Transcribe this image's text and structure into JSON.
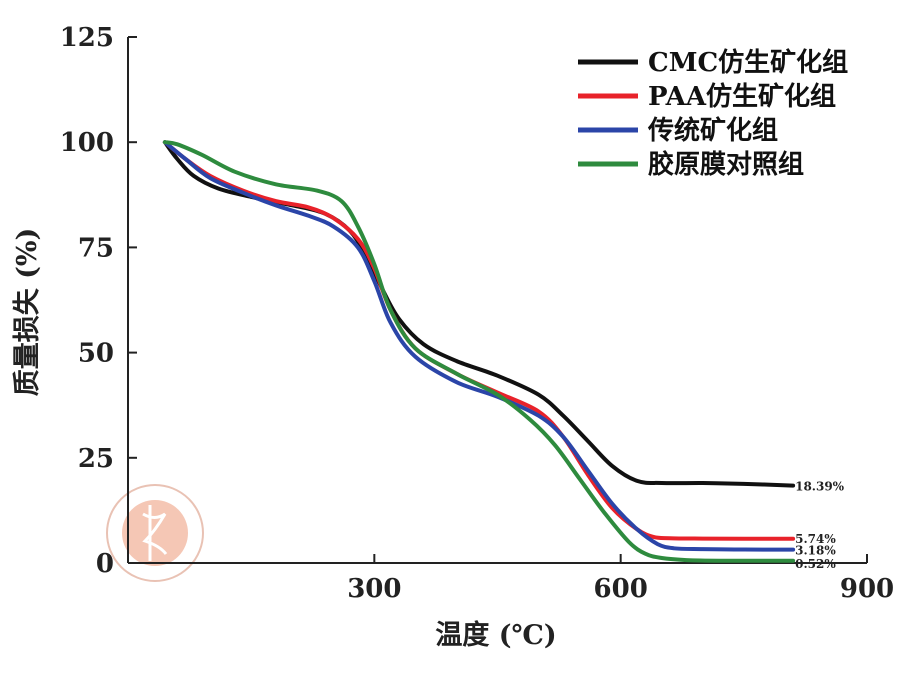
{
  "chart_data": {
    "type": "line",
    "title": "",
    "xlabel": "温度 (℃)",
    "ylabel": "质量损失 (%)",
    "xlim": [
      0,
      900
    ],
    "ylim": [
      0,
      125
    ],
    "xticks": [
      300,
      600,
      900
    ],
    "yticks": [
      0,
      25,
      50,
      75,
      100,
      125
    ],
    "grid": false,
    "legend_position": "top-right",
    "series": [
      {
        "name": "CMC仿生矿化组",
        "color": "#111111",
        "x": [
          45,
          60,
          80,
          110,
          150,
          200,
          240,
          270,
          290,
          310,
          330,
          360,
          400,
          450,
          500,
          530,
          560,
          590,
          620,
          650,
          700,
          750,
          810
        ],
        "y": [
          100,
          96,
          92,
          89,
          87,
          85,
          83,
          79,
          73,
          65,
          58,
          52,
          48,
          44.5,
          40,
          35,
          29,
          23,
          19.5,
          19,
          19,
          18.8,
          18.4
        ],
        "end_label": "18.39%"
      },
      {
        "name": "PAA仿生矿化组",
        "color": "#e8222a",
        "x": [
          45,
          70,
          100,
          140,
          180,
          220,
          250,
          280,
          300,
          320,
          350,
          400,
          450,
          500,
          530,
          560,
          590,
          620,
          640,
          660,
          700,
          750,
          810
        ],
        "y": [
          100,
          96,
          92,
          88.5,
          86,
          84.5,
          82,
          77,
          70,
          60,
          51,
          45,
          40.5,
          36,
          30,
          21,
          13,
          8,
          6.2,
          5.9,
          5.8,
          5.75,
          5.74
        ],
        "end_label": "5.74%"
      },
      {
        "name": "传统矿化组",
        "color": "#2b45a8",
        "x": [
          45,
          70,
          100,
          140,
          180,
          220,
          250,
          280,
          300,
          320,
          350,
          400,
          450,
          500,
          530,
          560,
          590,
          620,
          645,
          665,
          700,
          750,
          810
        ],
        "y": [
          100,
          96,
          91.5,
          88,
          85,
          82.5,
          80,
          75,
          67,
          57,
          49,
          43,
          39.5,
          35,
          30,
          22,
          14,
          8,
          4.5,
          3.5,
          3.3,
          3.2,
          3.18
        ],
        "end_label": "3.18%"
      },
      {
        "name": "胶原膜对照组",
        "color": "#2e8b3e",
        "x": [
          45,
          60,
          90,
          130,
          180,
          230,
          260,
          280,
          300,
          320,
          350,
          400,
          450,
          490,
          520,
          550,
          580,
          610,
          630,
          650,
          680,
          720,
          810
        ],
        "y": [
          100,
          99.5,
          97,
          93,
          90,
          88.5,
          86,
          80,
          71,
          60,
          51,
          45,
          40,
          34,
          28,
          20,
          12,
          5,
          2.2,
          1.2,
          0.7,
          0.55,
          0.52
        ],
        "end_label": "0.52%"
      }
    ]
  }
}
